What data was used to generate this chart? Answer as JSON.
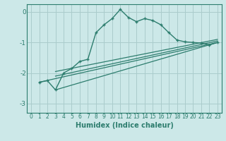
{
  "xlabel": "Humidex (Indice chaleur)",
  "bg_color": "#cce8e8",
  "grid_color": "#aacccc",
  "line_color": "#2d7d6e",
  "xlim": [
    -0.5,
    23.5
  ],
  "ylim": [
    -3.3,
    0.25
  ],
  "xticks": [
    0,
    1,
    2,
    3,
    4,
    5,
    6,
    7,
    8,
    9,
    10,
    11,
    12,
    13,
    14,
    15,
    16,
    17,
    18,
    19,
    20,
    21,
    22,
    23
  ],
  "yticks": [
    0,
    -1,
    -2,
    -3
  ],
  "curve1_x": [
    1,
    2,
    3,
    4,
    5,
    6,
    7,
    8,
    9,
    10,
    11,
    12,
    13,
    14,
    15,
    16,
    17,
    18,
    19,
    20,
    21,
    22,
    23
  ],
  "curve1_y": [
    -2.3,
    -2.25,
    -2.55,
    -2.0,
    -1.85,
    -1.62,
    -1.55,
    -0.68,
    -0.42,
    -0.22,
    0.08,
    -0.18,
    -0.32,
    -0.22,
    -0.28,
    -0.42,
    -0.68,
    -0.92,
    -0.98,
    -1.0,
    -1.02,
    -1.08,
    -1.0
  ],
  "line1_x": [
    1,
    23
  ],
  "line1_y": [
    -2.3,
    -1.0
  ],
  "line2_x": [
    3,
    23
  ],
  "line2_y": [
    -2.55,
    -1.0
  ],
  "line3_x": [
    3,
    23
  ],
  "line3_y": [
    -2.1,
    -0.95
  ],
  "line4_x": [
    3,
    23
  ],
  "line4_y": [
    -1.95,
    -0.9
  ]
}
